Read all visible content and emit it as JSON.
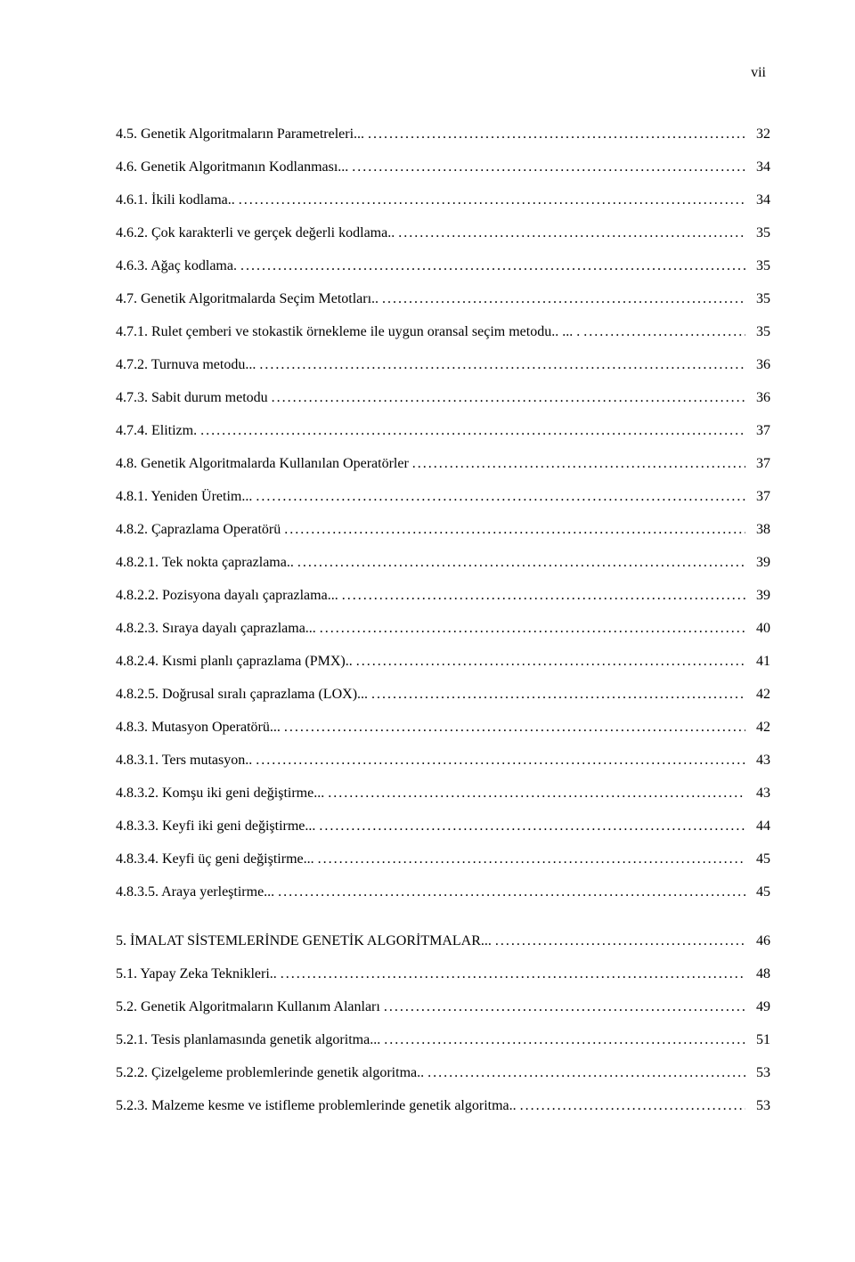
{
  "page_number_label": "vii",
  "leader_char": ".",
  "toc": [
    {
      "text": "4.5. Genetik Algoritmaların Parametreleri",
      "trail": "...",
      "page": "32"
    },
    {
      "text": "4.6. Genetik Algoritmanın Kodlanması",
      "trail": "...",
      "page": "34"
    },
    {
      "text": "4.6.1. İkili kodlama",
      "trail": "..",
      "page": "34"
    },
    {
      "text": "4.6.2. Çok karakterli ve gerçek değerli kodlama",
      "trail": "..",
      "page": "35"
    },
    {
      "text": "4.6.3. Ağaç kodlama",
      "trail": ".",
      "page": "35"
    },
    {
      "text": "4.7. Genetik Algoritmalarda Seçim Metotları",
      "trail": "..",
      "page": "35"
    },
    {
      "text": "4.7.1. Rulet çemberi ve stokastik örnekleme ile uygun oransal seçim metodu",
      "trail": ".. ... .",
      "page": "35"
    },
    {
      "text": "4.7.2. Turnuva metodu",
      "trail": "...",
      "page": "36"
    },
    {
      "text": "4.7.3. Sabit durum metodu",
      "trail": "",
      "page": "36"
    },
    {
      "text": "4.7.4. Elitizm",
      "trail": ".",
      "page": "37"
    },
    {
      "text": "4.8. Genetik Algoritmalarda Kullanılan Operatörler",
      "trail": "",
      "page": "37"
    },
    {
      "text": "4.8.1. Yeniden Üretim",
      "trail": "...",
      "page": "37"
    },
    {
      "text": "4.8.2. Çaprazlama Operatörü",
      "trail": "",
      "page": "38"
    },
    {
      "text": "4.8.2.1. Tek nokta çaprazlama",
      "trail": "..",
      "page": "39"
    },
    {
      "text": "4.8.2.2. Pozisyona dayalı çaprazlama",
      "trail": "...",
      "page": "39"
    },
    {
      "text": "4.8.2.3. Sıraya dayalı çaprazlama",
      "trail": "...",
      "page": "40"
    },
    {
      "text": "4.8.2.4. Kısmi planlı çaprazlama (PMX)",
      "trail": "..",
      "page": "41"
    },
    {
      "text": "4.8.2.5. Doğrusal sıralı çaprazlama (LOX)",
      "trail": "...",
      "page": "42"
    },
    {
      "text": "4.8.3. Mutasyon Operatörü",
      "trail": "...",
      "page": "42"
    },
    {
      "text": "4.8.3.1. Ters mutasyon",
      "trail": "..",
      "page": "43"
    },
    {
      "text": "4.8.3.2. Komşu iki geni değiştirme",
      "trail": "...",
      "page": "43"
    },
    {
      "text": "4.8.3.3. Keyfi iki geni değiştirme",
      "trail": "...",
      "page": "44"
    },
    {
      "text": "4.8.3.4. Keyfi üç geni değiştirme",
      "trail": "...",
      "page": "45"
    },
    {
      "text": "4.8.3.5. Araya yerleştirme",
      "trail": "...",
      "page": "45"
    },
    {
      "gap": true
    },
    {
      "text": "5. İMALAT SİSTEMLERİNDE GENETİK ALGORİTMALAR",
      "trail": "...",
      "page": "46"
    },
    {
      "text": "5.1. Yapay Zeka Teknikleri",
      "trail": "..",
      "page": "48"
    },
    {
      "text": "5.2. Genetik Algoritmaların Kullanım Alanları",
      "trail": "",
      "page": "49"
    },
    {
      "text": "5.2.1. Tesis planlamasında genetik algoritma",
      "trail": "...",
      "page": "51"
    },
    {
      "text": "5.2.2. Çizelgeleme problemlerinde genetik algoritma",
      "trail": "..",
      "page": "53"
    },
    {
      "text": "5.2.3. Malzeme kesme ve istifleme problemlerinde genetik algoritma",
      "trail": "..",
      "page": "53"
    }
  ]
}
